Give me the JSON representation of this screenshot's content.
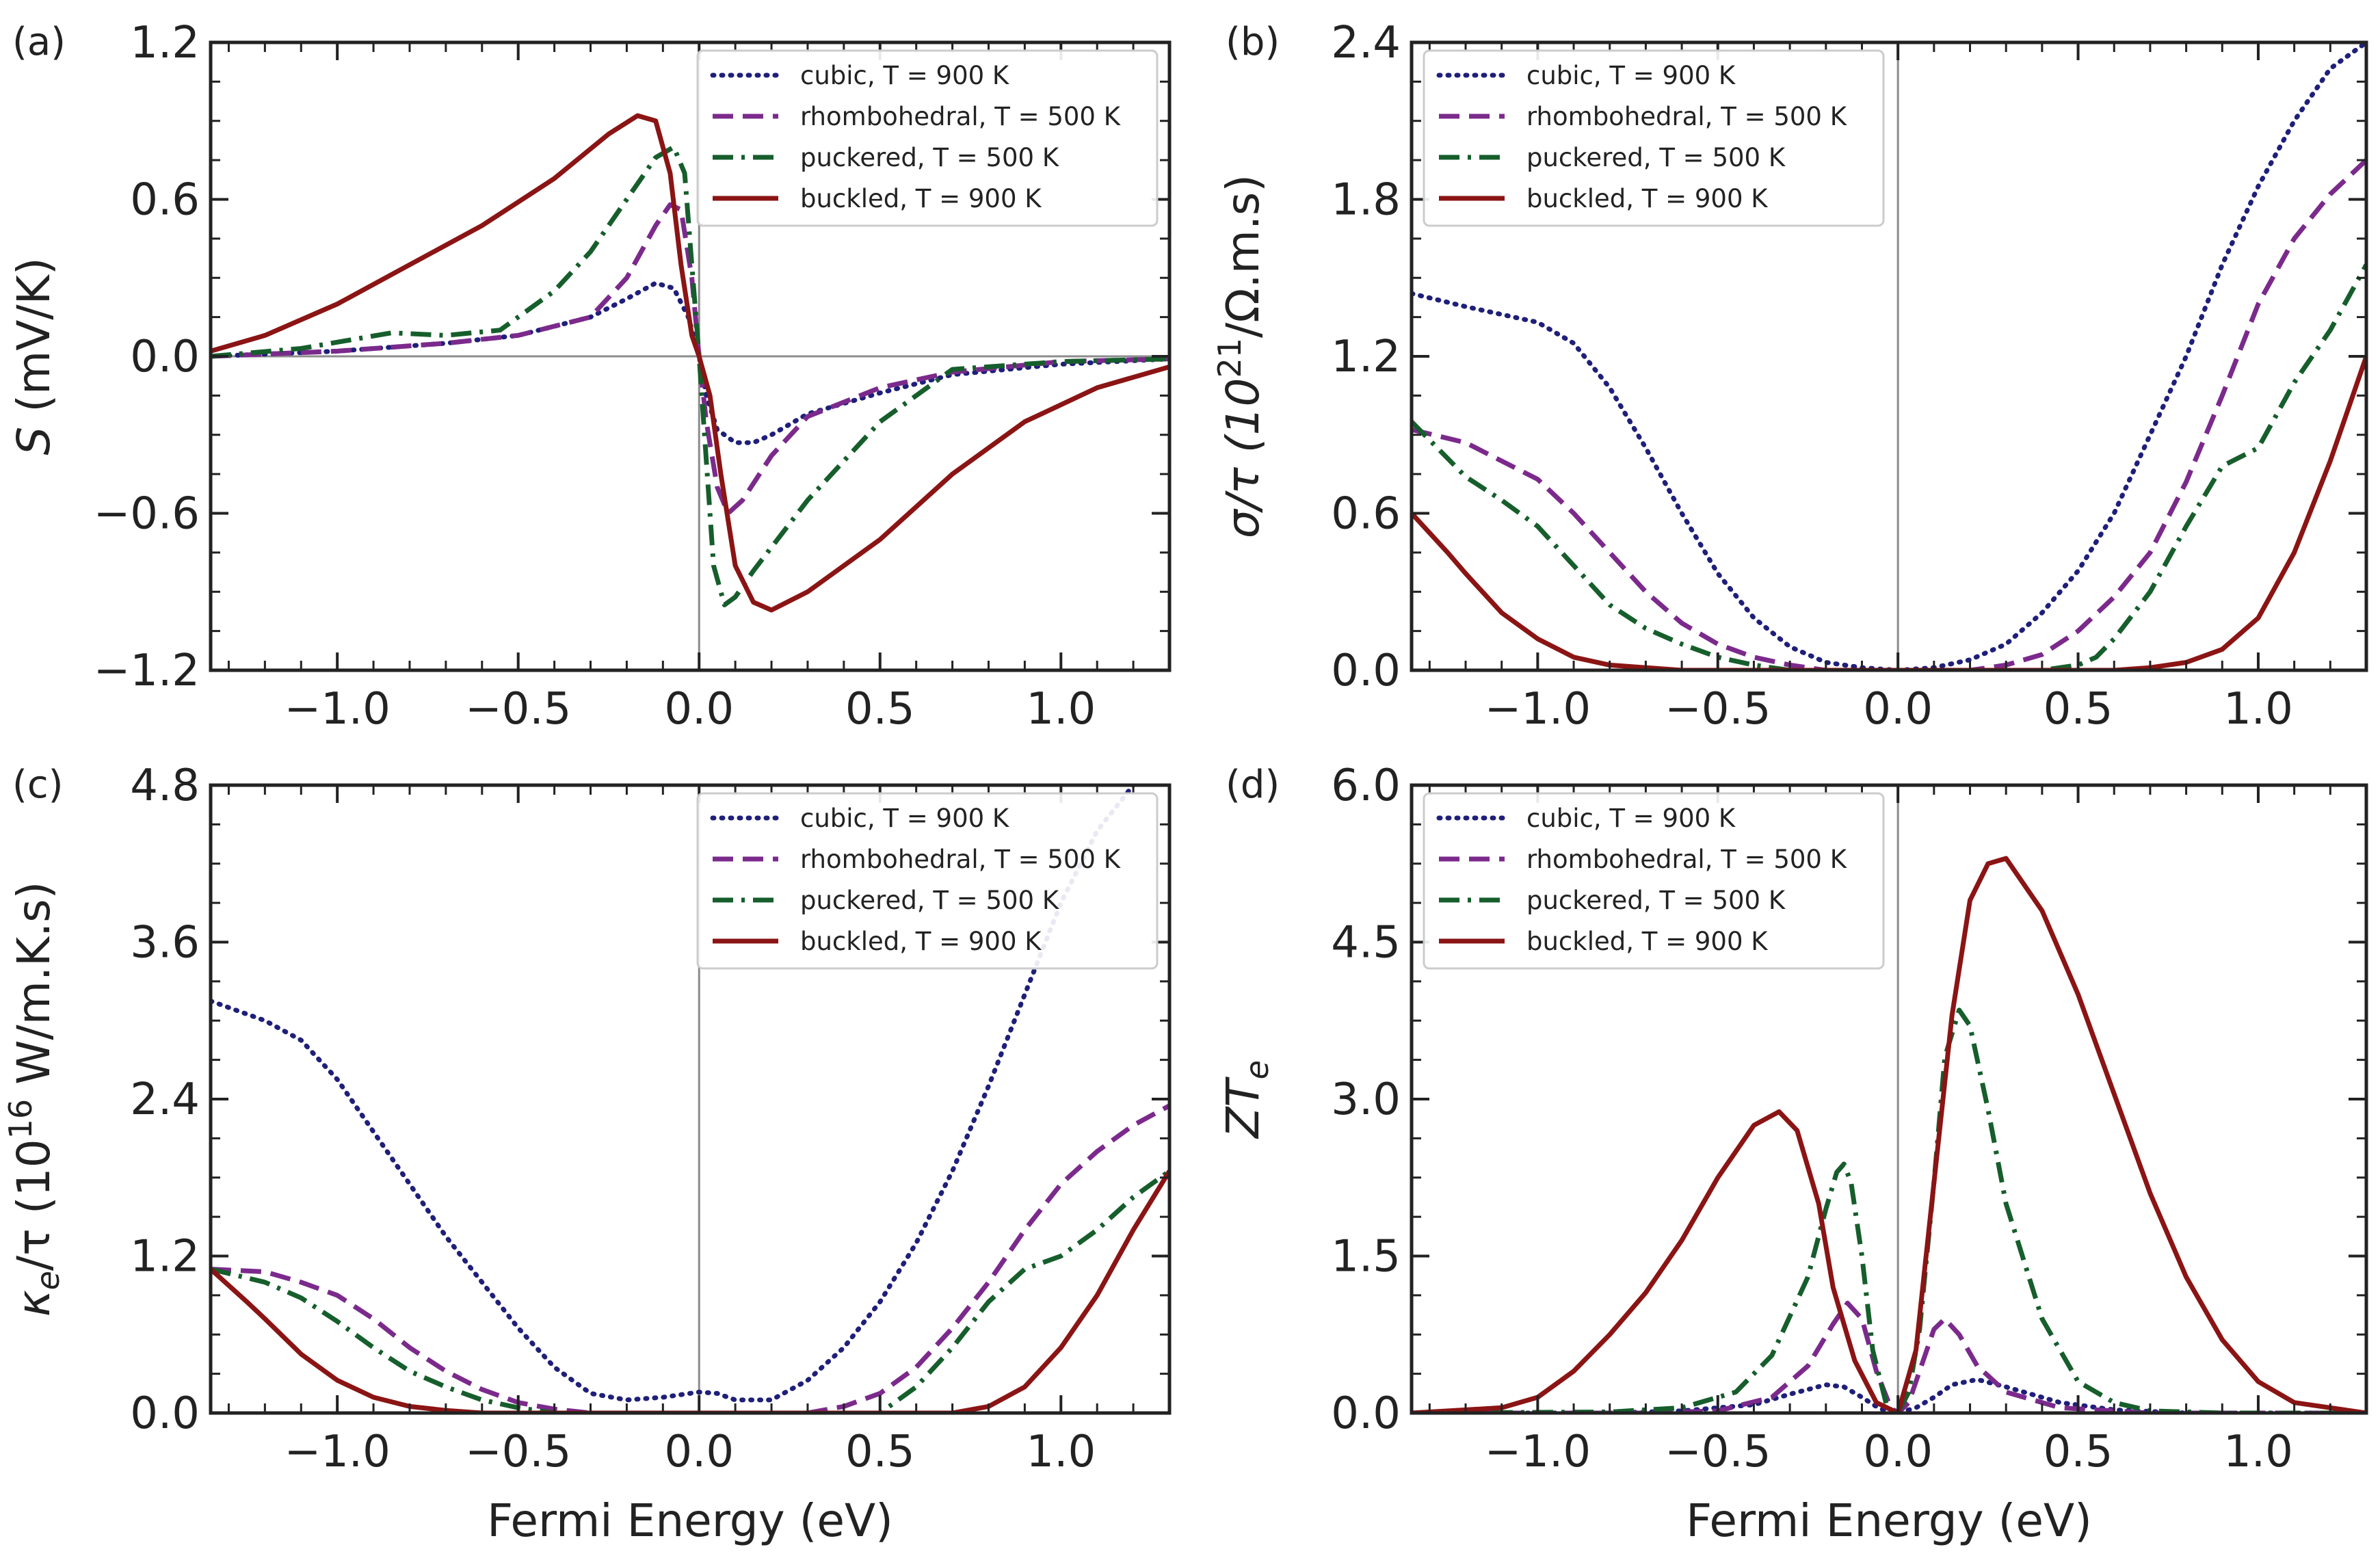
{
  "figure": {
    "xlabel": "Fermi Energy (eV)",
    "series_styles": [
      {
        "key": "cubic",
        "color": "#1f1f7a",
        "dash": "dotted"
      },
      {
        "key": "rhombohedral",
        "color": "#7b2a8c",
        "dash": "dashed"
      },
      {
        "key": "puckered",
        "color": "#165e2c",
        "dash": "dashdot"
      },
      {
        "key": "buckled",
        "color": "#8b1414",
        "dash": "solid"
      }
    ]
  },
  "chart_data": [
    {
      "type": "line",
      "panel": "(a)",
      "title": "",
      "xlabel": "",
      "ylabel_prefix": "S",
      "ylabel_sup": "",
      "ylabel_suffix": " (mV/K)",
      "xlim": [
        -1.35,
        1.3
      ],
      "ylim": [
        -1.2,
        1.2
      ],
      "xticks": [
        -1.0,
        -0.5,
        0.0,
        0.5,
        1.0
      ],
      "xtick_labels": [
        "−1.0",
        "−0.5",
        "0.0",
        "0.5",
        "1.0"
      ],
      "yticks": [
        -1.2,
        -0.6,
        0.0,
        0.6,
        1.2
      ],
      "ytick_labels": [
        "−1.2",
        "−0.6",
        "0.0",
        "0.6",
        "1.2"
      ],
      "show_xtick_labels": true,
      "zero_lines": [
        "x",
        "y"
      ],
      "legend": "top-right",
      "series": [
        {
          "name": "cubic, T = 900 K",
          "style": 0,
          "x": [
            -1.35,
            -1.0,
            -0.7,
            -0.5,
            -0.3,
            -0.2,
            -0.12,
            -0.07,
            -0.03,
            0.0,
            0.02,
            0.05,
            0.1,
            0.15,
            0.2,
            0.3,
            0.5,
            0.7,
            1.0,
            1.3
          ],
          "y": [
            0.0,
            0.02,
            0.05,
            0.08,
            0.15,
            0.22,
            0.28,
            0.26,
            0.15,
            0.0,
            -0.15,
            -0.28,
            -0.33,
            -0.33,
            -0.3,
            -0.22,
            -0.14,
            -0.07,
            -0.03,
            -0.01
          ]
        },
        {
          "name": "rhombohedral, T = 500 K",
          "style": 1,
          "x": [
            -1.35,
            -1.0,
            -0.7,
            -0.5,
            -0.3,
            -0.2,
            -0.12,
            -0.08,
            -0.05,
            -0.02,
            0.0,
            0.02,
            0.05,
            0.08,
            0.12,
            0.2,
            0.3,
            0.5,
            0.7,
            1.0,
            1.3
          ],
          "y": [
            0.0,
            0.02,
            0.05,
            0.08,
            0.15,
            0.3,
            0.5,
            0.58,
            0.56,
            0.3,
            0.0,
            -0.25,
            -0.5,
            -0.6,
            -0.55,
            -0.38,
            -0.23,
            -0.12,
            -0.06,
            -0.02,
            -0.01
          ]
        },
        {
          "name": "puckered, T = 500 K",
          "style": 2,
          "x": [
            -1.35,
            -1.1,
            -0.85,
            -0.7,
            -0.55,
            -0.4,
            -0.3,
            -0.2,
            -0.12,
            -0.07,
            -0.04,
            -0.02,
            0.0,
            0.02,
            0.04,
            0.07,
            0.1,
            0.15,
            0.3,
            0.5,
            0.7,
            1.0,
            1.3
          ],
          "y": [
            0.0,
            0.03,
            0.09,
            0.08,
            0.1,
            0.25,
            0.4,
            0.6,
            0.76,
            0.8,
            0.7,
            0.35,
            0.0,
            -0.4,
            -0.8,
            -0.95,
            -0.92,
            -0.82,
            -0.55,
            -0.25,
            -0.05,
            -0.02,
            -0.01
          ]
        },
        {
          "name": "buckled,  T = 900 K",
          "style": 3,
          "x": [
            -1.35,
            -1.2,
            -1.0,
            -0.8,
            -0.6,
            -0.4,
            -0.25,
            -0.17,
            -0.12,
            -0.08,
            -0.05,
            -0.02,
            0.0,
            0.03,
            0.06,
            0.1,
            0.15,
            0.2,
            0.3,
            0.5,
            0.7,
            0.9,
            1.1,
            1.3
          ],
          "y": [
            0.02,
            0.08,
            0.2,
            0.35,
            0.5,
            0.68,
            0.85,
            0.92,
            0.9,
            0.7,
            0.35,
            0.08,
            0.0,
            -0.15,
            -0.45,
            -0.8,
            -0.94,
            -0.97,
            -0.9,
            -0.7,
            -0.45,
            -0.25,
            -0.12,
            -0.04
          ]
        }
      ]
    },
    {
      "type": "line",
      "panel": "(b)",
      "title": "",
      "xlabel": "",
      "ylabel_prefix": "σ/τ (10",
      "ylabel_sup": "21",
      "ylabel_suffix": "/Ω.m.s)",
      "xlim": [
        -1.35,
        1.3
      ],
      "ylim": [
        0.0,
        2.4
      ],
      "xticks": [
        -1.0,
        -0.5,
        0.0,
        0.5,
        1.0
      ],
      "xtick_labels": [
        "−1.0",
        "−0.5",
        "0.0",
        "0.5",
        "1.0"
      ],
      "yticks": [
        0.0,
        0.6,
        1.2,
        1.8,
        2.4
      ],
      "ytick_labels": [
        "0.0",
        "0.6",
        "1.2",
        "1.8",
        "2.4"
      ],
      "show_xtick_labels": true,
      "zero_lines": [
        "x"
      ],
      "legend": "top-left",
      "series": [
        {
          "name": "cubic, T = 900 K",
          "style": 0,
          "x": [
            -1.35,
            -1.2,
            -1.0,
            -0.9,
            -0.8,
            -0.7,
            -0.6,
            -0.5,
            -0.4,
            -0.3,
            -0.2,
            -0.1,
            0.0,
            0.1,
            0.2,
            0.3,
            0.4,
            0.5,
            0.6,
            0.7,
            0.8,
            0.9,
            1.0,
            1.1,
            1.2,
            1.3
          ],
          "y": [
            1.44,
            1.39,
            1.33,
            1.25,
            1.08,
            0.85,
            0.6,
            0.37,
            0.2,
            0.09,
            0.03,
            0.01,
            0.0,
            0.01,
            0.04,
            0.1,
            0.22,
            0.38,
            0.6,
            0.9,
            1.2,
            1.55,
            1.85,
            2.1,
            2.3,
            2.4
          ]
        },
        {
          "name": "rhombohedral, T = 500 K",
          "style": 1,
          "x": [
            -1.35,
            -1.2,
            -1.0,
            -0.9,
            -0.8,
            -0.7,
            -0.6,
            -0.5,
            -0.4,
            -0.3,
            -0.2,
            -0.1,
            0.0,
            0.2,
            0.3,
            0.4,
            0.5,
            0.6,
            0.7,
            0.8,
            0.9,
            1.0,
            1.1,
            1.2,
            1.3
          ],
          "y": [
            0.92,
            0.87,
            0.73,
            0.6,
            0.45,
            0.3,
            0.18,
            0.1,
            0.05,
            0.02,
            0.0,
            0.0,
            0.0,
            0.0,
            0.02,
            0.06,
            0.15,
            0.28,
            0.45,
            0.72,
            1.05,
            1.4,
            1.65,
            1.82,
            1.95
          ]
        },
        {
          "name": "puckered, T = 500 K",
          "style": 2,
          "x": [
            -1.35,
            -1.2,
            -1.1,
            -1.0,
            -0.9,
            -0.8,
            -0.7,
            -0.6,
            -0.5,
            -0.4,
            -0.3,
            -0.2,
            0.0,
            0.4,
            0.5,
            0.55,
            0.6,
            0.7,
            0.8,
            0.9,
            1.0,
            1.1,
            1.2,
            1.3
          ],
          "y": [
            0.95,
            0.74,
            0.65,
            0.55,
            0.4,
            0.25,
            0.16,
            0.1,
            0.05,
            0.02,
            0.0,
            0.0,
            0.0,
            0.0,
            0.02,
            0.05,
            0.12,
            0.3,
            0.55,
            0.78,
            0.85,
            1.1,
            1.3,
            1.55
          ]
        },
        {
          "name": "buckled,  T = 900 K",
          "style": 3,
          "x": [
            -1.35,
            -1.25,
            -1.2,
            -1.1,
            -1.0,
            -0.9,
            -0.8,
            -0.7,
            -0.6,
            -0.5,
            0.0,
            0.6,
            0.7,
            0.8,
            0.9,
            1.0,
            1.1,
            1.2,
            1.3
          ],
          "y": [
            0.6,
            0.45,
            0.37,
            0.22,
            0.12,
            0.05,
            0.02,
            0.01,
            0.0,
            0.0,
            0.0,
            0.0,
            0.01,
            0.03,
            0.08,
            0.2,
            0.45,
            0.8,
            1.2
          ]
        }
      ]
    },
    {
      "type": "line",
      "panel": "(c)",
      "title": "",
      "xlabel": "Fermi Energy (eV)",
      "ylabel_prefix": "κ",
      "ylabel_sub": "e",
      "ylabel_mid": "/τ (10",
      "ylabel_sup": "16",
      "ylabel_suffix": " W/m.K.s)",
      "xlim": [
        -1.35,
        1.3
      ],
      "ylim": [
        0.0,
        4.8
      ],
      "xticks": [
        -1.0,
        -0.5,
        0.0,
        0.5,
        1.0
      ],
      "xtick_labels": [
        "−1.0",
        "−0.5",
        "0.0",
        "0.5",
        "1.0"
      ],
      "yticks": [
        0.0,
        1.2,
        2.4,
        3.6,
        4.8
      ],
      "ytick_labels": [
        "0.0",
        "1.2",
        "2.4",
        "3.6",
        "4.8"
      ],
      "show_xtick_labels": true,
      "zero_lines": [
        "x"
      ],
      "legend": "top-right",
      "series": [
        {
          "name": "cubic, T = 900 K",
          "style": 0,
          "x": [
            -1.35,
            -1.2,
            -1.1,
            -1.0,
            -0.9,
            -0.8,
            -0.7,
            -0.6,
            -0.5,
            -0.4,
            -0.3,
            -0.2,
            -0.1,
            0.0,
            0.05,
            0.1,
            0.2,
            0.3,
            0.4,
            0.5,
            0.6,
            0.7,
            0.8,
            0.9,
            1.0,
            1.1,
            1.2
          ],
          "y": [
            3.15,
            3.0,
            2.85,
            2.55,
            2.15,
            1.75,
            1.35,
            1.0,
            0.65,
            0.35,
            0.15,
            0.1,
            0.12,
            0.16,
            0.15,
            0.1,
            0.1,
            0.25,
            0.5,
            0.85,
            1.3,
            1.85,
            2.5,
            3.2,
            3.9,
            4.45,
            4.8
          ]
        },
        {
          "name": "rhombohedral, T = 500 K",
          "style": 1,
          "x": [
            -1.35,
            -1.2,
            -1.1,
            -1.0,
            -0.9,
            -0.8,
            -0.7,
            -0.6,
            -0.5,
            -0.4,
            -0.3,
            0.0,
            0.3,
            0.4,
            0.5,
            0.6,
            0.7,
            0.8,
            0.9,
            1.0,
            1.1,
            1.2,
            1.3
          ],
          "y": [
            1.1,
            1.08,
            1.0,
            0.9,
            0.72,
            0.5,
            0.32,
            0.18,
            0.08,
            0.03,
            0.0,
            0.0,
            0.0,
            0.05,
            0.15,
            0.35,
            0.65,
            1.0,
            1.4,
            1.75,
            2.0,
            2.2,
            2.35
          ]
        },
        {
          "name": "puckered, T = 500 K",
          "style": 2,
          "x": [
            -1.35,
            -1.2,
            -1.1,
            -1.0,
            -0.9,
            -0.8,
            -0.7,
            -0.6,
            -0.5,
            -0.4,
            0.0,
            0.5,
            0.6,
            0.7,
            0.8,
            0.9,
            1.0,
            1.1,
            1.2,
            1.3
          ],
          "y": [
            1.1,
            1.0,
            0.88,
            0.7,
            0.5,
            0.32,
            0.2,
            0.1,
            0.04,
            0.0,
            0.0,
            0.0,
            0.2,
            0.5,
            0.85,
            1.1,
            1.2,
            1.4,
            1.65,
            1.85
          ]
        },
        {
          "name": "buckled,  T = 900 K",
          "style": 3,
          "x": [
            -1.35,
            -1.25,
            -1.2,
            -1.1,
            -1.0,
            -0.9,
            -0.8,
            -0.7,
            -0.6,
            0.0,
            0.7,
            0.8,
            0.9,
            1.0,
            1.1,
            1.2,
            1.3
          ],
          "y": [
            1.1,
            0.85,
            0.72,
            0.45,
            0.25,
            0.12,
            0.05,
            0.02,
            0.0,
            0.0,
            0.0,
            0.05,
            0.2,
            0.5,
            0.9,
            1.4,
            1.85
          ]
        }
      ]
    },
    {
      "type": "line",
      "panel": "(d)",
      "title": "",
      "xlabel": "Fermi Energy (eV)",
      "ylabel_prefix": "ZT",
      "ylabel_sub": "e",
      "ylabel_sup": "",
      "ylabel_suffix": "",
      "xlim": [
        -1.35,
        1.3
      ],
      "ylim": [
        0.0,
        6.0
      ],
      "xticks": [
        -1.0,
        -0.5,
        0.0,
        0.5,
        1.0
      ],
      "xtick_labels": [
        "−1.0",
        "−0.5",
        "0.0",
        "0.5",
        "1.0"
      ],
      "yticks": [
        0.0,
        1.5,
        3.0,
        4.5,
        6.0
      ],
      "ytick_labels": [
        "0.0",
        "1.5",
        "3.0",
        "4.5",
        "6.0"
      ],
      "show_xtick_labels": true,
      "zero_lines": [
        "x"
      ],
      "legend": "top-left",
      "series": [
        {
          "name": "cubic, T = 900 K",
          "style": 0,
          "x": [
            -1.35,
            -0.8,
            -0.6,
            -0.4,
            -0.3,
            -0.2,
            -0.15,
            -0.1,
            -0.05,
            0.0,
            0.05,
            0.1,
            0.15,
            0.22,
            0.3,
            0.45,
            0.6,
            0.8,
            1.3
          ],
          "y": [
            0.0,
            0.0,
            0.02,
            0.08,
            0.18,
            0.27,
            0.25,
            0.15,
            0.04,
            0.0,
            0.05,
            0.15,
            0.27,
            0.32,
            0.25,
            0.1,
            0.03,
            0.0,
            0.0
          ]
        },
        {
          "name": "rhombohedral, T = 500 K",
          "style": 1,
          "x": [
            -1.35,
            -0.7,
            -0.5,
            -0.35,
            -0.25,
            -0.18,
            -0.14,
            -0.1,
            -0.06,
            -0.02,
            0.0,
            0.03,
            0.07,
            0.1,
            0.13,
            0.17,
            0.22,
            0.3,
            0.45,
            0.7,
            1.3
          ],
          "y": [
            0.0,
            0.0,
            0.02,
            0.15,
            0.45,
            0.85,
            1.05,
            0.9,
            0.4,
            0.05,
            0.0,
            0.1,
            0.5,
            0.8,
            0.9,
            0.75,
            0.45,
            0.2,
            0.05,
            0.0,
            0.0
          ]
        },
        {
          "name": "puckered, T = 500 K",
          "style": 2,
          "x": [
            -1.35,
            -0.8,
            -0.6,
            -0.45,
            -0.35,
            -0.25,
            -0.2,
            -0.17,
            -0.15,
            -0.13,
            -0.1,
            -0.07,
            -0.03,
            0.0,
            0.03,
            0.06,
            0.1,
            0.13,
            0.17,
            0.2,
            0.25,
            0.3,
            0.4,
            0.5,
            0.6,
            0.7,
            0.9,
            1.3
          ],
          "y": [
            0.0,
            0.01,
            0.05,
            0.2,
            0.55,
            1.3,
            1.95,
            2.3,
            2.38,
            2.2,
            1.5,
            0.6,
            0.05,
            0.0,
            0.2,
            0.8,
            2.2,
            3.4,
            3.85,
            3.7,
            2.9,
            2.0,
            0.9,
            0.3,
            0.1,
            0.02,
            0.0,
            0.0
          ]
        },
        {
          "name": "buckled,  T = 900 K",
          "style": 3,
          "x": [
            -1.35,
            -1.1,
            -1.0,
            -0.9,
            -0.8,
            -0.7,
            -0.6,
            -0.5,
            -0.4,
            -0.33,
            -0.28,
            -0.22,
            -0.18,
            -0.12,
            -0.06,
            0.0,
            0.05,
            0.1,
            0.15,
            0.2,
            0.25,
            0.3,
            0.4,
            0.5,
            0.6,
            0.7,
            0.8,
            0.9,
            1.0,
            1.1,
            1.3
          ],
          "y": [
            0.0,
            0.05,
            0.15,
            0.4,
            0.75,
            1.15,
            1.65,
            2.25,
            2.75,
            2.88,
            2.7,
            2.0,
            1.2,
            0.5,
            0.1,
            0.0,
            0.6,
            2.2,
            3.8,
            4.9,
            5.25,
            5.3,
            4.8,
            4.0,
            3.05,
            2.1,
            1.3,
            0.7,
            0.3,
            0.1,
            0.0
          ]
        }
      ]
    }
  ]
}
